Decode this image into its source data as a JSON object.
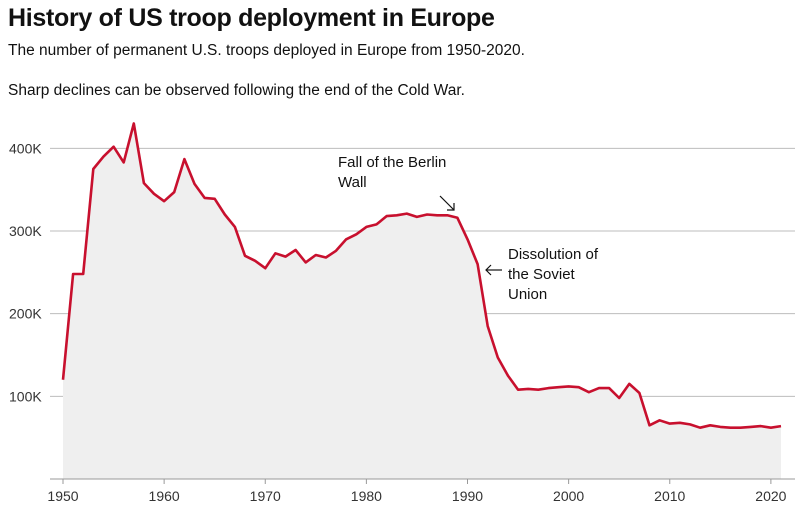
{
  "header": {
    "title": "History of US troop deployment in Europe",
    "subtitle": "The number of permanent U.S. troops deployed in Europe from 1950-2020.",
    "note": "Sharp declines can be observed following the end of the Cold War."
  },
  "chart_data": {
    "type": "area",
    "title": "History of US troop deployment in Europe",
    "subtitle": "The number of permanent U.S. troops deployed in Europe from 1950-2020.",
    "xlabel": "",
    "ylabel": "",
    "xlim": [
      1950,
      2021
    ],
    "ylim": [
      0,
      450000
    ],
    "x_ticks": [
      1950,
      1960,
      1970,
      1980,
      1990,
      2000,
      2010,
      2020
    ],
    "y_ticks": [
      100000,
      200000,
      300000,
      400000
    ],
    "x_tick_labels": [
      "1950",
      "1960",
      "1970",
      "1980",
      "1990",
      "2000",
      "2010",
      "2020"
    ],
    "y_tick_labels": [
      "100K",
      "200K",
      "300K",
      "400K"
    ],
    "grid": "horizontal",
    "line_color": "#c8102e",
    "fill_color": "#efefef",
    "x": [
      1950,
      1951,
      1952,
      1953,
      1954,
      1955,
      1956,
      1957,
      1958,
      1959,
      1960,
      1961,
      1962,
      1963,
      1964,
      1965,
      1966,
      1967,
      1968,
      1969,
      1970,
      1971,
      1972,
      1973,
      1974,
      1975,
      1976,
      1977,
      1978,
      1979,
      1980,
      1981,
      1982,
      1983,
      1984,
      1985,
      1986,
      1987,
      1988,
      1989,
      1990,
      1991,
      1992,
      1993,
      1994,
      1995,
      1996,
      1997,
      1998,
      1999,
      2000,
      2001,
      2002,
      2003,
      2004,
      2005,
      2006,
      2007,
      2008,
      2009,
      2010,
      2011,
      2012,
      2013,
      2014,
      2015,
      2016,
      2017,
      2018,
      2019,
      2020,
      2021
    ],
    "y": [
      120000,
      248000,
      248000,
      375000,
      390000,
      402000,
      383000,
      430000,
      358000,
      345000,
      336000,
      347000,
      387000,
      357000,
      340000,
      339000,
      320000,
      305000,
      270000,
      264000,
      255000,
      273000,
      269000,
      277000,
      262000,
      271000,
      268000,
      276000,
      290000,
      296000,
      305000,
      308000,
      318000,
      319000,
      321000,
      317000,
      320000,
      319000,
      319000,
      316000,
      290000,
      260000,
      185000,
      147000,
      125000,
      108000,
      109000,
      108000,
      110000,
      111000,
      112000,
      111000,
      105000,
      110000,
      110000,
      98000,
      115000,
      104000,
      65000,
      71000,
      67000,
      68000,
      66000,
      62000,
      65000,
      63000,
      62000,
      62000,
      63000,
      64000,
      62000,
      64000
    ],
    "annotations": [
      {
        "text_lines": [
          "Fall of the Berlin",
          "Wall"
        ],
        "x": 1989,
        "arrow": "diagonal"
      },
      {
        "text_lines": [
          "Dissolution of",
          "the Soviet",
          "Union"
        ],
        "x": 1991,
        "arrow": "left"
      }
    ]
  }
}
